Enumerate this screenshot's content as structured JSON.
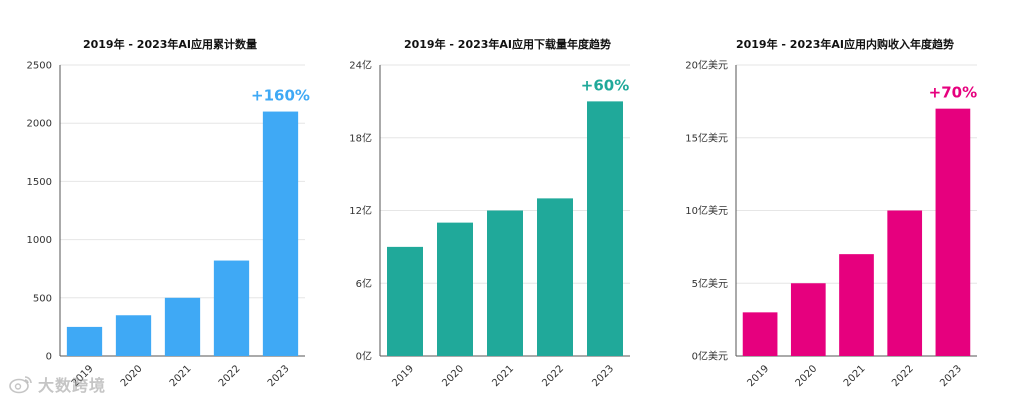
{
  "charts": [
    {
      "chart_data": {
        "type": "bar",
        "title": "2019年 - 2023年AI应用累计数量",
        "categories": [
          "2019",
          "2020",
          "2021",
          "2022",
          "2023"
        ],
        "values": [
          250,
          350,
          500,
          820,
          2100
        ],
        "ylim": [
          0,
          2500
        ],
        "yticks": [
          0,
          500,
          1000,
          1500,
          2000,
          2500
        ],
        "ytick_labels": [
          "0",
          "500",
          "1000",
          "1500",
          "2000",
          "2500"
        ],
        "annotation": "+160%",
        "grid": true
      },
      "color": "#3fa9f5"
    },
    {
      "chart_data": {
        "type": "bar",
        "title": "2019年 - 2023年AI应用下载量年度趋势",
        "categories": [
          "2019",
          "2020",
          "2021",
          "2022",
          "2023"
        ],
        "values": [
          9,
          11,
          12,
          13,
          21
        ],
        "ylim": [
          0,
          24
        ],
        "yticks": [
          0,
          6,
          12,
          18,
          24
        ],
        "ytick_labels": [
          "0亿",
          "6亿",
          "12亿",
          "18亿",
          "24亿"
        ],
        "annotation": "+60%",
        "grid": true
      },
      "color": "#20a99a"
    },
    {
      "chart_data": {
        "type": "bar",
        "title": "2019年 - 2023年AI应用内购收入年度趋势",
        "categories": [
          "2019",
          "2020",
          "2021",
          "2022",
          "2023"
        ],
        "values": [
          3,
          5,
          7,
          10,
          17
        ],
        "ylim": [
          0,
          20
        ],
        "yticks": [
          0,
          5,
          10,
          15,
          20
        ],
        "ytick_labels": [
          "0亿美元",
          "5亿美元",
          "10亿美元",
          "15亿美元",
          "20亿美元"
        ],
        "annotation": "+70%",
        "grid": true
      },
      "color": "#e6007e"
    }
  ],
  "watermark": {
    "text": "大数跨境",
    "icon": "weibo-logo-icon"
  }
}
